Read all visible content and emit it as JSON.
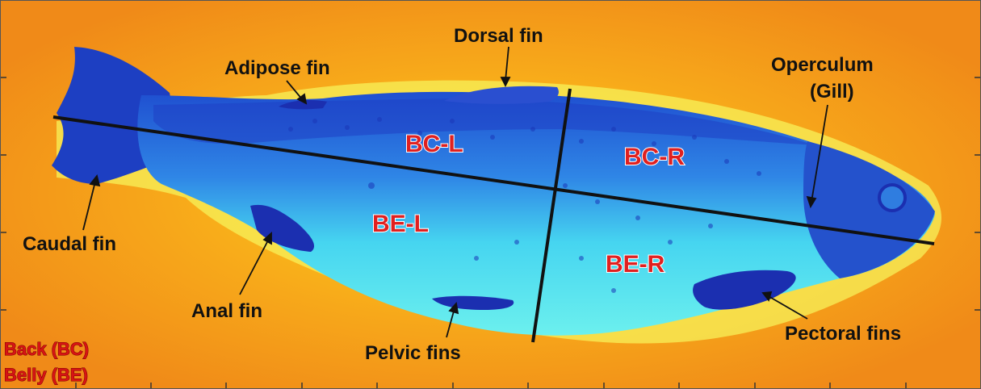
{
  "annotations": {
    "dorsal_fin": "Dorsal fin",
    "adipose_fin": "Adipose fin",
    "operculum_line1": "Operculum",
    "operculum_line2": "(Gill)",
    "caudal_fin": "Caudal fin",
    "anal_fin": "Anal fin",
    "pelvic_fins": "Pelvic fins",
    "pectoral_fins": "Pectoral fins"
  },
  "regions": {
    "bc_l": "BC-L",
    "bc_r": "BC-R",
    "be_l": "BE-L",
    "be_r": "BE-R"
  },
  "legend": {
    "back": "Back (BC)",
    "belly": "Belly (BE)"
  },
  "colors": {
    "background": "#f3a11a",
    "fish_body": "#2e7ee0",
    "fish_belly": "#3fd6ee",
    "fin_dark": "#1b2fb0",
    "region_label": "#e02020",
    "divider_line": "#111111"
  }
}
